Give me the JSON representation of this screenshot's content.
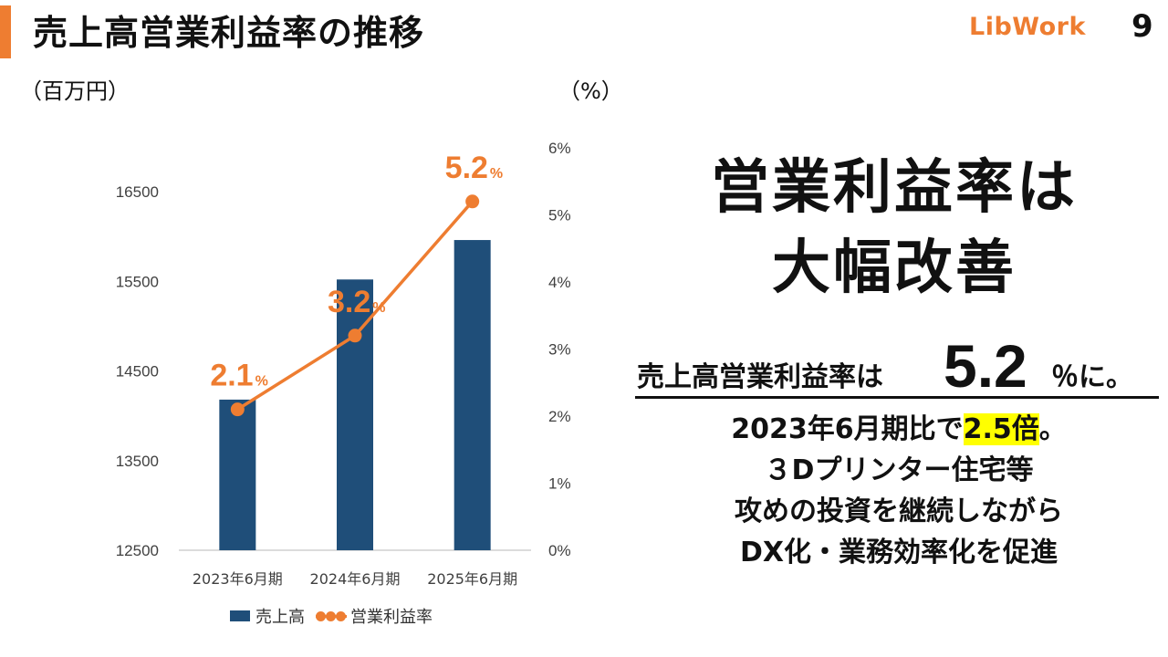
{
  "header": {
    "title": "売上高営業利益率の推移",
    "logo_text": "LibWork",
    "page_number": "9",
    "accent_color": "#ee7d31"
  },
  "chart_data": {
    "type": "bar",
    "categories": [
      "2023年6月期",
      "2024年6月期",
      "2025年6月期"
    ],
    "series": [
      {
        "name": "売上高",
        "type": "bar",
        "axis": "left",
        "color": "#1f4e79",
        "values": [
          14180,
          15520,
          15960
        ]
      },
      {
        "name": "営業利益率",
        "type": "line",
        "axis": "right",
        "color": "#ee7d31",
        "values": [
          2.1,
          3.2,
          5.2
        ],
        "labels": [
          "2.1",
          "3.2",
          "5.2"
        ],
        "label_unit": "%"
      }
    ],
    "y_left": {
      "unit_label": "（百万円）",
      "ylim": [
        12500,
        16500
      ],
      "ticks": [
        "12500",
        "13500",
        "14500",
        "15500",
        "16500"
      ]
    },
    "y_right": {
      "unit_label": "（%）",
      "ylim": [
        0,
        6
      ],
      "ticks": [
        "0%",
        "1%",
        "2%",
        "3%",
        "4%",
        "5%",
        "6%"
      ]
    },
    "legend_placement": "bottom",
    "grid": false
  },
  "panel": {
    "headline_line1": "営業利益率は",
    "headline_line2": "大幅改善",
    "stat_prefix": "売上高営業利益率は",
    "stat_value": "5.2",
    "stat_suffix": "％に。",
    "line1_pre": "2023年6月期比で",
    "line1_highlight": "2.5倍",
    "line1_post": "。",
    "line2": "３Dプリンター住宅等",
    "line3": "攻めの投資を継続しながら",
    "line4": "DX化・業務効率化を促進",
    "highlight_color": "#ffff00"
  }
}
